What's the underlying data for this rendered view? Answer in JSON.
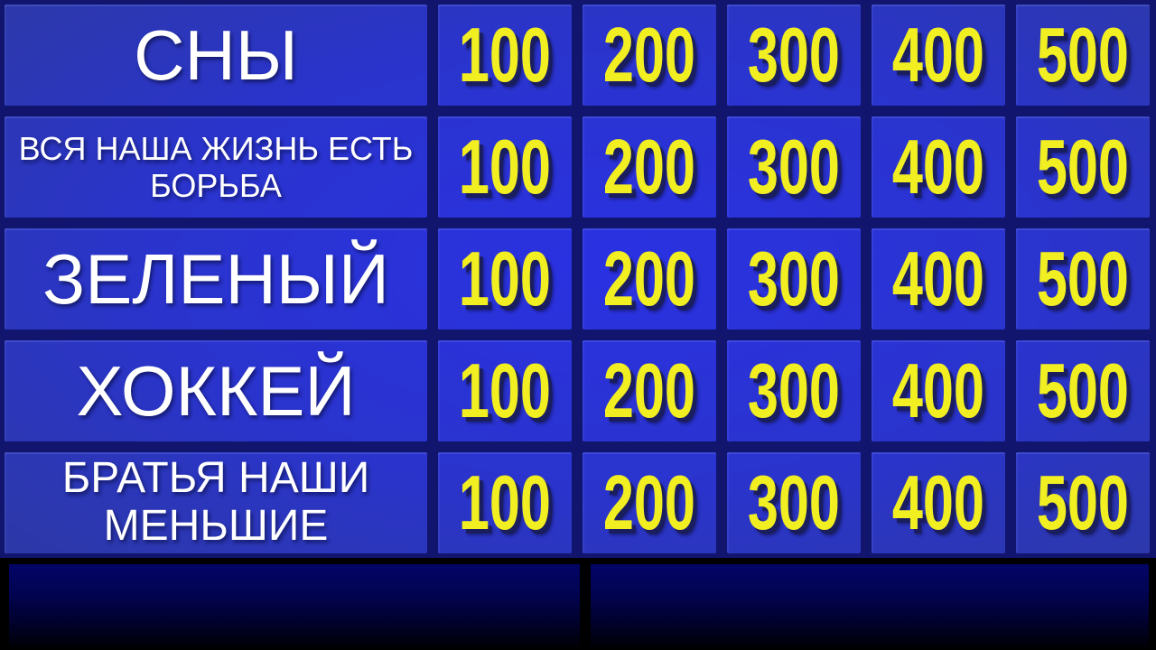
{
  "theme": {
    "grid_line": "#11156d",
    "cell_blue_center": "#2a31e2",
    "cell_blue_edge": "#2e3b93",
    "category_text": "#ffffff",
    "value_text": "#f1ee21",
    "value_shadow": "#1a1d5e",
    "panel_top": "#030567",
    "panel_bottom": "#000000"
  },
  "board": {
    "rows": [
      {
        "category": "СНЫ",
        "values": [
          "100",
          "200",
          "300",
          "400",
          "500"
        ]
      },
      {
        "category": "ВСЯ НАША ЖИЗНЬ ЕСТЬ\nБОРЬБА",
        "values": [
          "100",
          "200",
          "300",
          "400",
          "500"
        ]
      },
      {
        "category": "ЗЕЛЕНЫЙ",
        "values": [
          "100",
          "200",
          "300",
          "400",
          "500"
        ]
      },
      {
        "category": "ХОККЕЙ",
        "values": [
          "100",
          "200",
          "300",
          "400",
          "500"
        ]
      },
      {
        "category": "БРАТЬЯ НАШИ\nМЕНЬШИЕ",
        "values": [
          "100",
          "200",
          "300",
          "400",
          "500"
        ]
      }
    ]
  }
}
